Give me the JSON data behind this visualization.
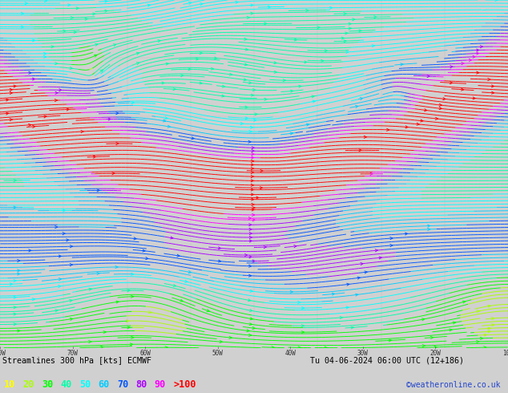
{
  "title_left": "Streamlines 300 hPa [kts] ECMWF",
  "title_right": "Tu 04-06-2024 06:00 UTC (12+186)",
  "legend_values": [
    "10",
    "20",
    "30",
    "40",
    "50",
    "60",
    "70",
    "80",
    "90",
    ">100"
  ],
  "legend_colors": [
    "#ffff00",
    "#aaff00",
    "#00ff00",
    "#00ffaa",
    "#00ffff",
    "#00ccff",
    "#0055ff",
    "#aa00ff",
    "#ff00ff",
    "#ff0000"
  ],
  "credit": "©weatheronline.co.uk",
  "fig_width": 6.34,
  "fig_height": 4.9,
  "dpi": 100,
  "map_bg": "#f0f0f0",
  "bottom_bg": "#d0d0d0"
}
